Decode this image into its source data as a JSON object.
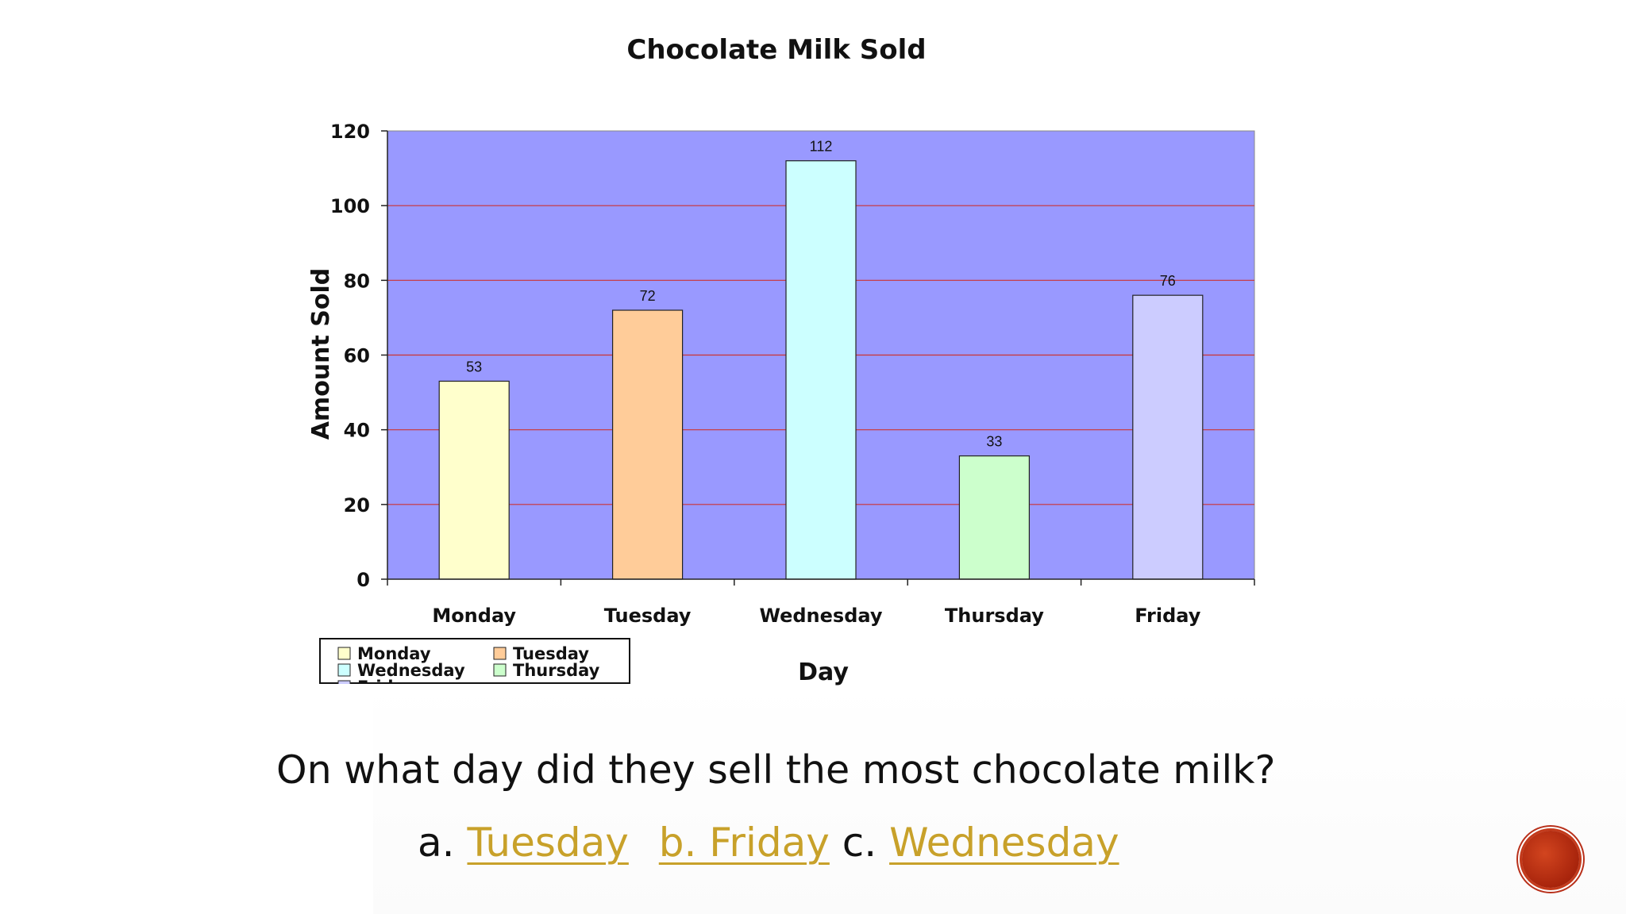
{
  "slide": {
    "question": "On what day did they sell the most chocolate milk?",
    "answers": {
      "a_prefix": "a.",
      "a_text": "Tuesday",
      "b_text": "b. Friday",
      "c_prefix": "c.",
      "c_text": "Wednesday"
    },
    "nav_button_icon": "next-slide-button",
    "link_color": "#c8a12a"
  },
  "chart_data": {
    "type": "bar",
    "title": "Chocolate Milk Sold",
    "xlabel": "Day",
    "ylabel": "Amount Sold",
    "categories": [
      "Monday",
      "Tuesday",
      "Wednesday",
      "Thursday",
      "Friday"
    ],
    "values": [
      53,
      72,
      112,
      33,
      76
    ],
    "bar_colors": [
      "#ffffcc",
      "#ffcc99",
      "#ccffff",
      "#ccffcc",
      "#ccccff"
    ],
    "plot_background": "#9999ff",
    "gridline_color": "#cc3333",
    "ylim": [
      0,
      120
    ],
    "yticks": [
      0,
      20,
      40,
      60,
      80,
      100,
      120
    ],
    "grid": true,
    "data_labels": true,
    "legend": {
      "placement": "bottom-left",
      "entries": [
        "Monday",
        "Tuesday",
        "Wednesday",
        "Thursday",
        "Friday"
      ]
    }
  }
}
